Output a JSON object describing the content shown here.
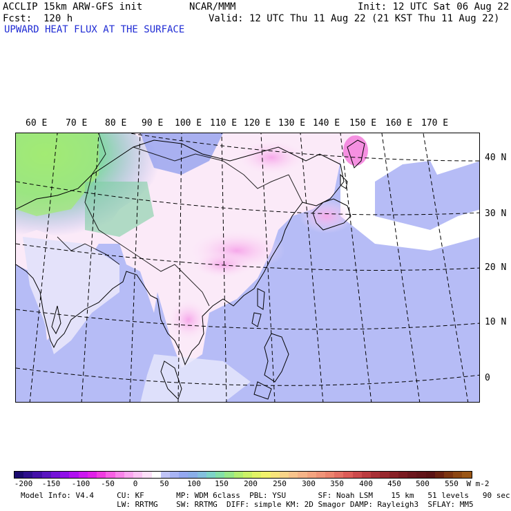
{
  "header": {
    "model_line": "ACCLIP 15km ARW-GFS init",
    "center": "NCAR/MMM",
    "init": "Init: 12 UTC Sat 06 Aug 22",
    "fcst": "Fcst:  120 h",
    "valid": "Valid: 12 UTC Thu 11 Aug 22 (21 KST Thu 11 Aug 22)",
    "title": "UPWARD HEAT FLUX AT THE SURFACE"
  },
  "map": {
    "lon_labels": [
      "60 E",
      "70 E",
      "80 E",
      "90 E",
      "100 E",
      "110 E",
      "120 E",
      "130 E",
      "140 E",
      "150 E",
      "160 E",
      "170 E"
    ],
    "lat_labels": [
      "40 N",
      "30 N",
      "20 N",
      "10 N",
      "0"
    ]
  },
  "colorbar": {
    "ticks": [
      "-200",
      "-150",
      "-100",
      "-50",
      "0",
      "50",
      "100",
      "150",
      "200",
      "250",
      "300",
      "350",
      "400",
      "450",
      "500",
      "550"
    ],
    "unit": "W m-2",
    "colors": [
      "#1a0a6e",
      "#2d0f8c",
      "#4410a8",
      "#5a16c0",
      "#7414d8",
      "#9010e8",
      "#b010f0",
      "#cc18f0",
      "#e020e8",
      "#f03ce0",
      "#f860e4",
      "#fa84ea",
      "#fca6f0",
      "#fcc4f4",
      "#fde0f8",
      "#ffffff",
      "#c0c4f8",
      "#a8b4f4",
      "#94a8f0",
      "#8aaee8",
      "#84c0de",
      "#7ed4c8",
      "#84e0a8",
      "#98e888",
      "#b4ee70",
      "#ccf266",
      "#e2f466",
      "#f2f26c",
      "#f8e47a",
      "#f8d488",
      "#f8c48c",
      "#f6b488",
      "#f4a480",
      "#f09478",
      "#ec846e",
      "#e47064",
      "#dc5c58",
      "#cc4a4c",
      "#bc3c40",
      "#a83036",
      "#98282e",
      "#882026",
      "#7a1a20",
      "#6c161c",
      "#621418",
      "#5a1214",
      "#6a2010",
      "#7c3410",
      "#8c4612",
      "#9a5616"
    ]
  },
  "footer": {
    "line1": "Model Info: V4.4     CU: KF       MP: WDM 6class  PBL: YSU       SF: Noah LSM    15 km   51 levels   90 sec",
    "line2": "                     LW: RRTMG    SW: RRTMG  DIFF: simple KM: 2D Smagor DAMP: Rayleigh3  SFLAY: MM5"
  }
}
